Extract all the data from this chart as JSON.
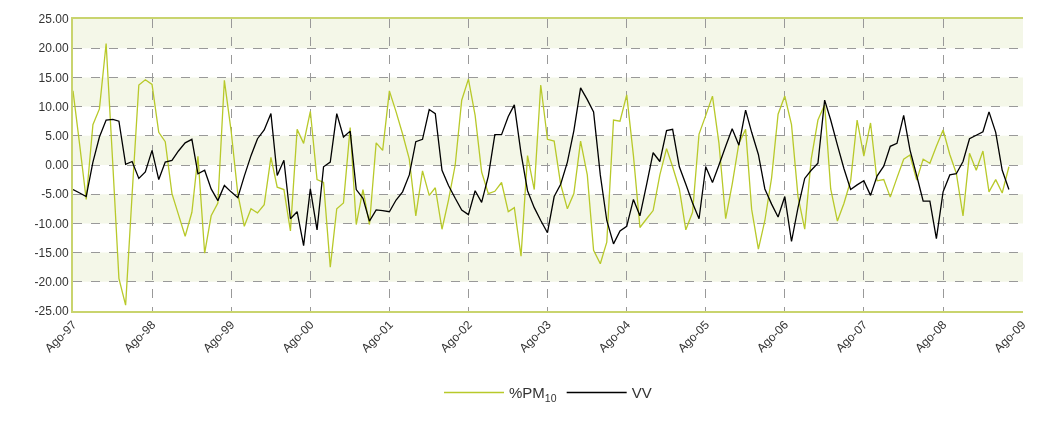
{
  "chart_data": {
    "type": "line",
    "x": [
      "1997-08",
      "1997-09",
      "1997-10",
      "1997-11",
      "1997-12",
      "1998-01",
      "1998-02",
      "1998-03",
      "1998-04",
      "1998-05",
      "1998-06",
      "1998-07",
      "1998-08",
      "1998-09",
      "1998-10",
      "1998-11",
      "1998-12",
      "1999-01",
      "1999-02",
      "1999-03",
      "1999-04",
      "1999-05",
      "1999-06",
      "1999-07",
      "1999-08",
      "1999-09",
      "1999-10",
      "1999-11",
      "1999-12",
      "2000-01",
      "2000-02",
      "2000-03",
      "2000-04",
      "2000-05",
      "2000-06",
      "2000-07",
      "2000-08",
      "2000-09",
      "2000-10",
      "2000-11",
      "2000-12",
      "2001-01",
      "2001-02",
      "2001-03",
      "2001-04",
      "2001-05",
      "2001-06",
      "2001-07",
      "2001-08",
      "2001-09",
      "2001-10",
      "2001-11",
      "2001-12",
      "2002-01",
      "2002-02",
      "2002-03",
      "2002-04",
      "2002-05",
      "2002-06",
      "2002-07",
      "2002-08",
      "2002-09",
      "2002-10",
      "2002-11",
      "2002-12",
      "2003-01",
      "2003-02",
      "2003-03",
      "2003-04",
      "2003-05",
      "2003-06",
      "2003-07",
      "2003-08",
      "2003-09",
      "2003-10",
      "2003-11",
      "2003-12",
      "2004-01",
      "2004-02",
      "2004-03",
      "2004-04",
      "2004-05",
      "2004-06",
      "2004-07",
      "2004-08",
      "2004-09",
      "2004-10",
      "2004-11",
      "2004-12",
      "2005-01",
      "2005-02",
      "2005-03",
      "2005-04",
      "2005-05",
      "2005-06",
      "2005-07",
      "2005-08",
      "2005-09",
      "2005-10",
      "2005-11",
      "2005-12",
      "2006-01",
      "2006-02",
      "2006-03",
      "2006-04",
      "2006-05",
      "2006-06",
      "2006-07",
      "2006-08",
      "2006-09",
      "2006-10",
      "2006-11",
      "2006-12",
      "2007-01",
      "2007-02",
      "2007-03",
      "2007-04",
      "2007-05",
      "2007-06",
      "2007-07",
      "2007-08",
      "2007-09",
      "2007-10",
      "2007-11",
      "2007-12",
      "2008-01",
      "2008-02",
      "2008-03",
      "2008-04",
      "2008-05",
      "2008-06",
      "2008-07",
      "2008-08",
      "2008-09",
      "2008-10",
      "2008-11",
      "2008-12",
      "2009-01",
      "2009-02",
      "2009-03",
      "2009-04",
      "2009-05",
      "2009-06"
    ],
    "series": [
      {
        "name": "%PM$_{10}$",
        "color": "#b8c92a",
        "values": [
          12.7,
          3.4,
          -5.9,
          6.9,
          9.6,
          20.8,
          0,
          -19.4,
          -24.0,
          -5,
          13.7,
          14.6,
          13.8,
          5.6,
          4.0,
          -4.9,
          -8.5,
          -12.2,
          -8.1,
          1.5,
          -15.1,
          -8.7,
          -6.5,
          14.5,
          5.9,
          -4.9,
          -10.5,
          -7.5,
          -8.2,
          -6.8,
          1.3,
          -3.8,
          -4.2,
          -11.3,
          6.1,
          3.7,
          9.2,
          -2.5,
          -3.0,
          -17.5,
          -7.5,
          -6.5,
          6.4,
          -10.2,
          -4.2,
          -10.2,
          3.8,
          2.5,
          12.7,
          9.1,
          5.3,
          1.0,
          -8.7,
          -1.0,
          -5.2,
          -3.9,
          -11.0,
          -6.0,
          0,
          11.1,
          14.7,
          8.5,
          -1.2,
          -4.9,
          -4.5,
          -3.0,
          -8.0,
          -7.3,
          -15.6,
          1.6,
          -4.2,
          13.7,
          4.4,
          4.1,
          -3.3,
          -7.5,
          -4.9,
          4.1,
          -1.7,
          -14.6,
          -16.9,
          -13.2,
          7.7,
          7.5,
          12.0,
          1.6,
          -10.7,
          -9.2,
          -7.8,
          -1.7,
          2.8,
          -0.3,
          -4.1,
          -11.1,
          -8.1,
          5.3,
          8.5,
          11.8,
          3.7,
          -9.2,
          -3.3,
          3.7,
          6.1,
          -7.6,
          -14.4,
          -9.5,
          -2.2,
          8.7,
          11.8,
          6.9,
          -5.4,
          -11.0,
          1.0,
          7.7,
          10.3,
          -4.1,
          -9.6,
          -6.6,
          -2.7,
          7.7,
          1.5,
          7.2,
          -2.7,
          -2.5,
          -5.5,
          -2.2,
          1.0,
          1.7,
          -2.6,
          1.0,
          0.3,
          3.2,
          6.0,
          1.8,
          -1.4,
          -8.7,
          2.0,
          -0.9,
          2.4,
          -4.6,
          -2.5,
          -4.8,
          -0.3
        ]
      },
      {
        "name": "VV",
        "color": "#000000",
        "values": [
          -4.2,
          -4.8,
          -5.4,
          0.5,
          4.8,
          7.7,
          7.8,
          7.5,
          0.1,
          0.6,
          -2.3,
          -1.2,
          2.5,
          -2.5,
          0.5,
          0.8,
          2.4,
          3.8,
          4.4,
          -1.5,
          -0.9,
          -4.1,
          -6.1,
          -3.5,
          -4.6,
          -5.6,
          -1.9,
          1.6,
          4.5,
          6.0,
          8.8,
          -1.8,
          0.8,
          -9.2,
          -8.0,
          -13.8,
          -4.1,
          -11.1,
          -0.3,
          0.5,
          8.8,
          4.8,
          5.8,
          -4.2,
          -5.7,
          -9.6,
          -7.7,
          -7.8,
          -8.0,
          -6.0,
          -4.6,
          -1.7,
          4.0,
          4.4,
          9.5,
          8.8,
          -0.9,
          -3.5,
          -5.7,
          -7.7,
          -8.5,
          -4.4,
          -6.4,
          -1.9,
          5.2,
          5.2,
          8.3,
          10.3,
          2.0,
          -4.4,
          -7.3,
          -9.5,
          -11.6,
          -5.4,
          -3.3,
          0.5,
          5.9,
          13.2,
          11.2,
          9.1,
          -1.7,
          -9.5,
          -13.5,
          -11.3,
          -10.5,
          -5.9,
          -8.7,
          -3.3,
          2.1,
          0.6,
          5.9,
          6.1,
          -0.3,
          -3.3,
          -6.5,
          -9.2,
          -0.3,
          -3.0,
          0,
          3.2,
          6.2,
          3.4,
          9.4,
          5.6,
          1.8,
          -4.1,
          -6.7,
          -8.9,
          -5.4,
          -13.1,
          -7.3,
          -2.3,
          -0.9,
          0.3,
          11.1,
          7.7,
          3.4,
          -0.6,
          -4.2,
          -3.4,
          -2.7,
          -5.2,
          -1.9,
          -0.2,
          3.2,
          3.7,
          8.5,
          2.6,
          -1.8,
          -6.2,
          -6.2,
          -12.6,
          -4.6,
          -1.7,
          -1.5,
          0.6,
          4.5,
          5.1,
          5.7,
          9.1,
          5.6,
          -0.9,
          -4.2
        ]
      }
    ],
    "xlim": [
      "1997-08",
      "2009-08"
    ],
    "xticks": [
      {
        "value": "1997-08",
        "label": "Ago-97"
      },
      {
        "value": "1998-08",
        "label": "Ago-98"
      },
      {
        "value": "1999-08",
        "label": "Ago-99"
      },
      {
        "value": "2000-08",
        "label": "Ago-00"
      },
      {
        "value": "2001-08",
        "label": "Ago-01"
      },
      {
        "value": "2002-08",
        "label": "Ago-02"
      },
      {
        "value": "2003-08",
        "label": "Ago-03"
      },
      {
        "value": "2004-08",
        "label": "Ago-04"
      },
      {
        "value": "2005-08",
        "label": "Ago-05"
      },
      {
        "value": "2006-08",
        "label": "Ago-06"
      },
      {
        "value": "2007-08",
        "label": "Ago-07"
      },
      {
        "value": "2008-08",
        "label": "Ago-08"
      },
      {
        "value": "2009-08",
        "label": "Ago-09"
      }
    ],
    "ylim": [
      -25,
      25
    ],
    "yticks": [
      {
        "value": -25,
        "label": "-25.00"
      },
      {
        "value": -20,
        "label": "-20.00"
      },
      {
        "value": -15,
        "label": "-15.00"
      },
      {
        "value": -10,
        "label": "-10.00"
      },
      {
        "value": -5,
        "label": "-5.00"
      },
      {
        "value": 0,
        "label": "0.00"
      },
      {
        "value": 5,
        "label": "5.00"
      },
      {
        "value": 10,
        "label": "10.00"
      },
      {
        "value": 15,
        "label": "15.00"
      },
      {
        "value": 20,
        "label": "20.00"
      },
      {
        "value": 25,
        "label": "25.00"
      }
    ],
    "bands": [
      {
        "axis": "y",
        "from": 20,
        "to": 25,
        "color": "#f4f7e8"
      },
      {
        "axis": "y",
        "from": 10,
        "to": 15,
        "color": "#f4f7e8"
      },
      {
        "axis": "y",
        "from": 0,
        "to": 5,
        "color": "#f4f7e8"
      },
      {
        "axis": "y",
        "from": -10,
        "to": -5,
        "color": "#f4f7e8"
      },
      {
        "axis": "y",
        "from": -20,
        "to": -15,
        "color": "#f4f7e8"
      }
    ],
    "grid": true,
    "legend": "bottom",
    "marker": "none",
    "line_style": "solid"
  }
}
